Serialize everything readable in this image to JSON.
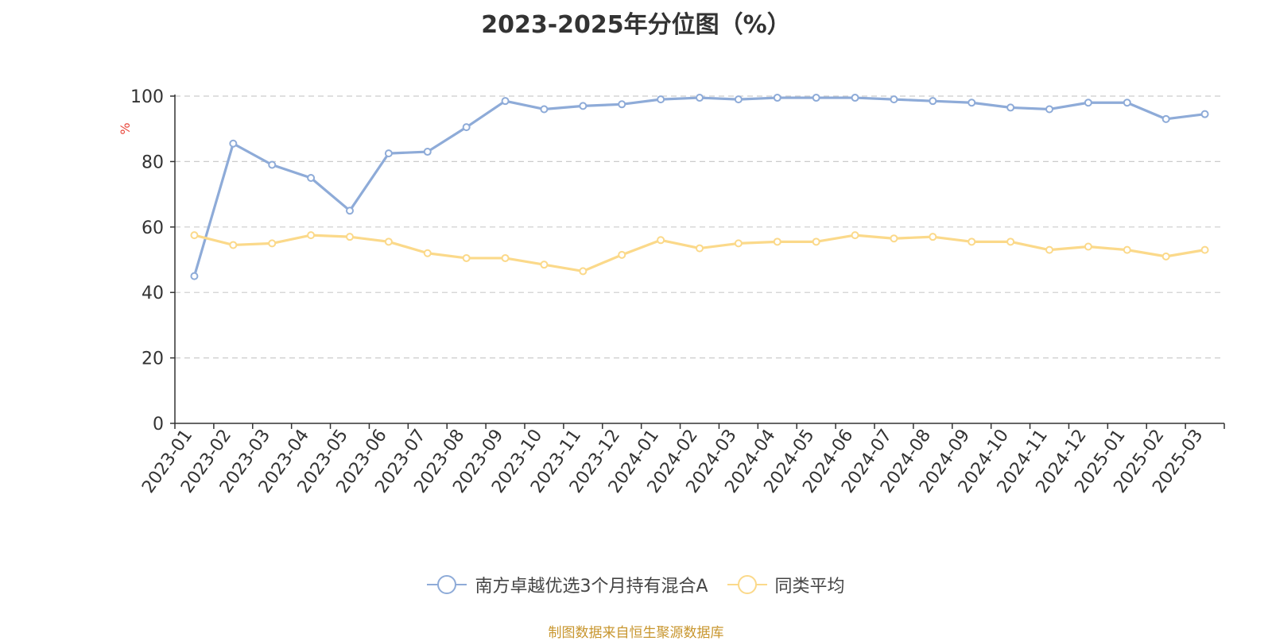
{
  "chart_data": {
    "type": "line",
    "title": "2023-2025年分位图（%）",
    "ylabel": "%",
    "xlabel": "",
    "ylim": [
      0,
      100
    ],
    "yticks": [
      0,
      20,
      40,
      60,
      80,
      100
    ],
    "grid": true,
    "legend_position": "bottom",
    "categories": [
      "2023-01",
      "2023-02",
      "2023-03",
      "2023-04",
      "2023-05",
      "2023-06",
      "2023-07",
      "2023-08",
      "2023-09",
      "2023-10",
      "2023-11",
      "2023-12",
      "2024-01",
      "2024-02",
      "2024-03",
      "2024-04",
      "2024-05",
      "2024-06",
      "2024-07",
      "2024-08",
      "2024-09",
      "2024-10",
      "2024-11",
      "2024-12",
      "2025-01",
      "2025-02",
      "2025-03"
    ],
    "series": [
      {
        "name": "南方卓越优选3个月持有混合A",
        "color": "#8eabd8",
        "values": [
          45,
          85.5,
          79,
          75,
          65,
          82.5,
          83,
          90.5,
          98.5,
          96,
          97,
          97.5,
          99,
          99.5,
          99,
          99.5,
          99.5,
          99.5,
          99,
          98.5,
          98,
          96.5,
          96,
          98,
          98,
          93,
          94.5
        ]
      },
      {
        "name": "同类平均",
        "color": "#fbd98a",
        "values": [
          57.5,
          54.5,
          55,
          57.5,
          57,
          55.5,
          52,
          50.5,
          50.5,
          48.5,
          46.5,
          51.5,
          56,
          53.5,
          55,
          55.5,
          55.5,
          57.5,
          56.5,
          57,
          55.5,
          55.5,
          53,
          54,
          53,
          51,
          53
        ]
      }
    ]
  },
  "source": "制图数据来自恒生聚源数据库",
  "colors": {
    "axis": "#333333",
    "grid": "#cccccc",
    "ylabel": "#e8463a",
    "source": "#c8962e"
  }
}
